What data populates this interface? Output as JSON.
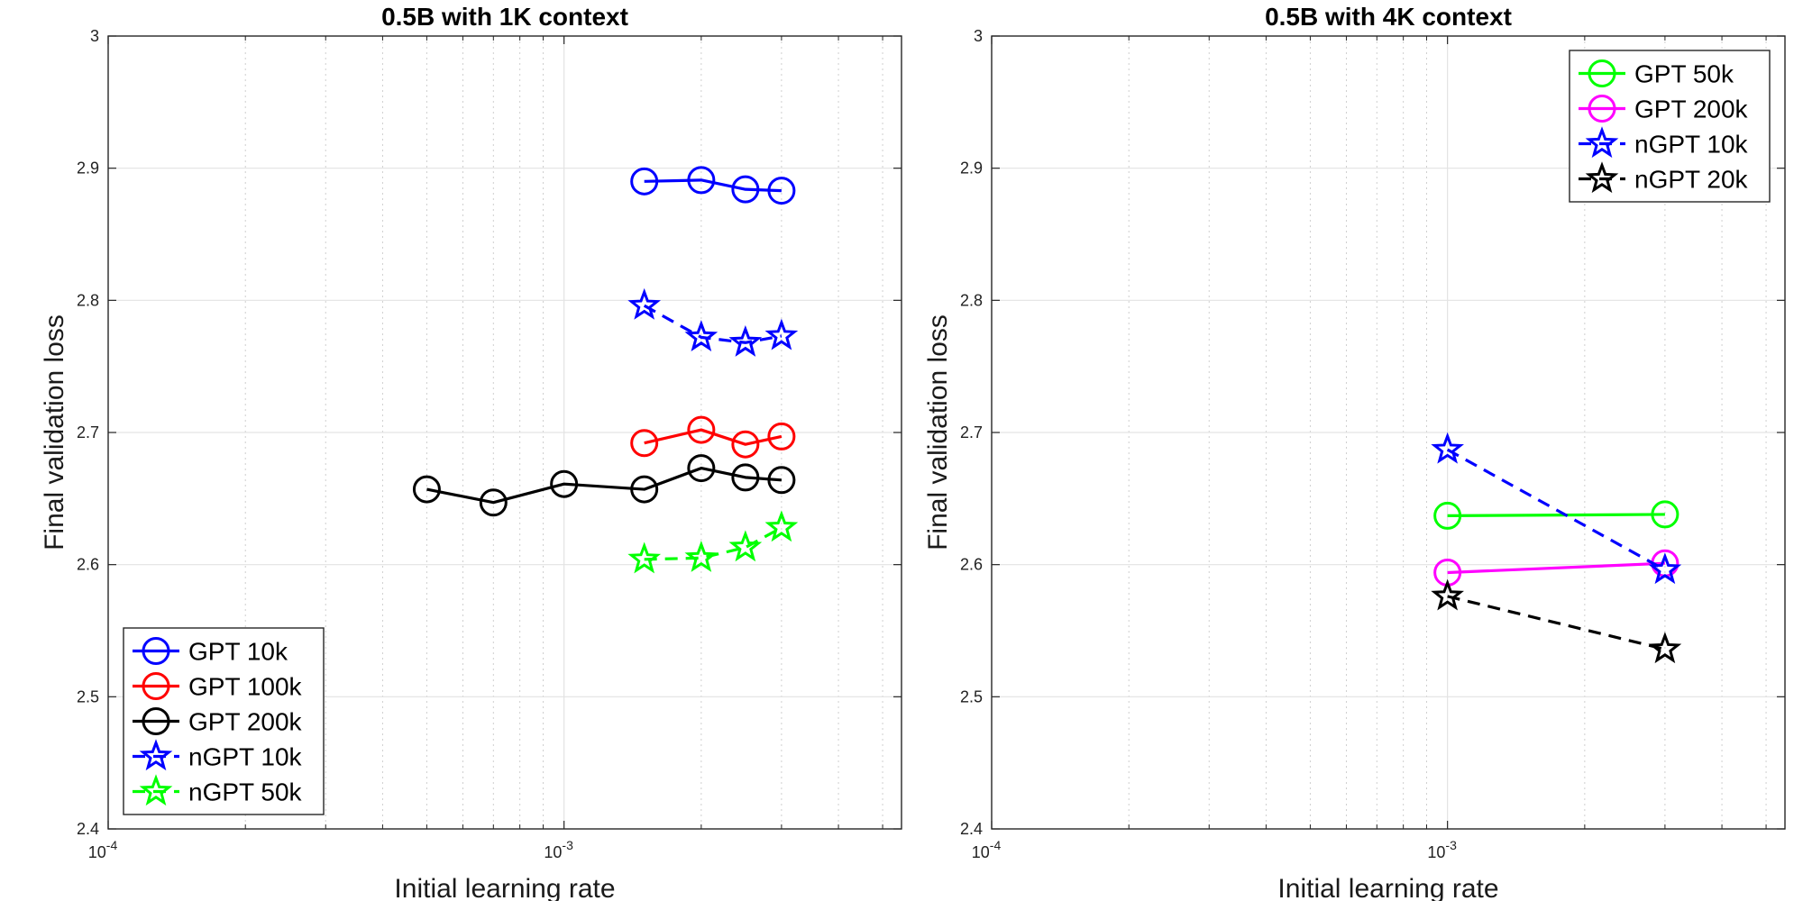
{
  "chart_data": [
    {
      "type": "line",
      "title": "0.5B with 1K context",
      "xlabel": "Initial learning rate",
      "ylabel": "Final validation loss",
      "xscale": "log",
      "xlim": [
        0.0001,
        0.0055
      ],
      "ylim": [
        2.4,
        3.0
      ],
      "yticks": [
        2.4,
        2.5,
        2.6,
        2.7,
        2.8,
        2.9,
        3.0
      ],
      "ytick_labels": [
        "2.4",
        "2.5",
        "2.6",
        "2.7",
        "2.8",
        "2.9",
        "3"
      ],
      "xticks": [
        {
          "value": 0.0001,
          "base": "10",
          "exp": "-4"
        },
        {
          "value": 0.001,
          "base": "10",
          "exp": "-3"
        }
      ],
      "grid": true,
      "legend_position": "bottom-left",
      "series": [
        {
          "name": "GPT 10k",
          "color": "#0000ff",
          "marker": "circle",
          "dash": "solid",
          "x": [
            0.0015,
            0.002,
            0.0025,
            0.003
          ],
          "y": [
            2.89,
            2.891,
            2.884,
            2.883
          ]
        },
        {
          "name": "GPT 100k",
          "color": "#ff0000",
          "marker": "circle",
          "dash": "solid",
          "x": [
            0.0015,
            0.002,
            0.0025,
            0.003
          ],
          "y": [
            2.692,
            2.702,
            2.691,
            2.697
          ]
        },
        {
          "name": "GPT 200k",
          "color": "#000000",
          "marker": "circle",
          "dash": "solid",
          "x": [
            0.0005,
            0.0007,
            0.001,
            0.0015,
            0.002,
            0.0025,
            0.003
          ],
          "y": [
            2.657,
            2.647,
            2.661,
            2.657,
            2.673,
            2.666,
            2.664
          ]
        },
        {
          "name": "nGPT 10k",
          "color": "#0000ff",
          "marker": "star",
          "dash": "dashed",
          "x": [
            0.0015,
            0.002,
            0.0025,
            0.003
          ],
          "y": [
            2.796,
            2.772,
            2.768,
            2.773
          ]
        },
        {
          "name": "nGPT 50k",
          "color": "#00ff00",
          "marker": "star",
          "dash": "dashed",
          "x": [
            0.0015,
            0.002,
            0.0025,
            0.003
          ],
          "y": [
            2.604,
            2.605,
            2.613,
            2.628
          ]
        }
      ]
    },
    {
      "type": "line",
      "title": "0.5B with 4K context",
      "xlabel": "Initial learning rate",
      "ylabel": "Final validation loss",
      "xscale": "log",
      "xlim": [
        0.0001,
        0.0055
      ],
      "ylim": [
        2.4,
        3.0
      ],
      "yticks": [
        2.4,
        2.5,
        2.6,
        2.7,
        2.8,
        2.9,
        3.0
      ],
      "ytick_labels": [
        "2.4",
        "2.5",
        "2.6",
        "2.7",
        "2.8",
        "2.9",
        "3"
      ],
      "xticks": [
        {
          "value": 0.0001,
          "base": "10",
          "exp": "-4"
        },
        {
          "value": 0.001,
          "base": "10",
          "exp": "-3"
        }
      ],
      "grid": true,
      "legend_position": "top-right",
      "series": [
        {
          "name": "GPT 50k",
          "color": "#00ff00",
          "marker": "circle",
          "dash": "solid",
          "x": [
            0.001,
            0.003
          ],
          "y": [
            2.637,
            2.638
          ]
        },
        {
          "name": "GPT 200k",
          "color": "#ff00ff",
          "marker": "circle",
          "dash": "solid",
          "x": [
            0.001,
            0.003
          ],
          "y": [
            2.594,
            2.601
          ]
        },
        {
          "name": "nGPT 10k",
          "color": "#0000ff",
          "marker": "star",
          "dash": "dashed",
          "x": [
            0.001,
            0.003
          ],
          "y": [
            2.687,
            2.596
          ]
        },
        {
          "name": "nGPT 20k",
          "color": "#000000",
          "marker": "star",
          "dash": "dashed",
          "x": [
            0.001,
            0.003
          ],
          "y": [
            2.576,
            2.536
          ]
        }
      ]
    }
  ]
}
